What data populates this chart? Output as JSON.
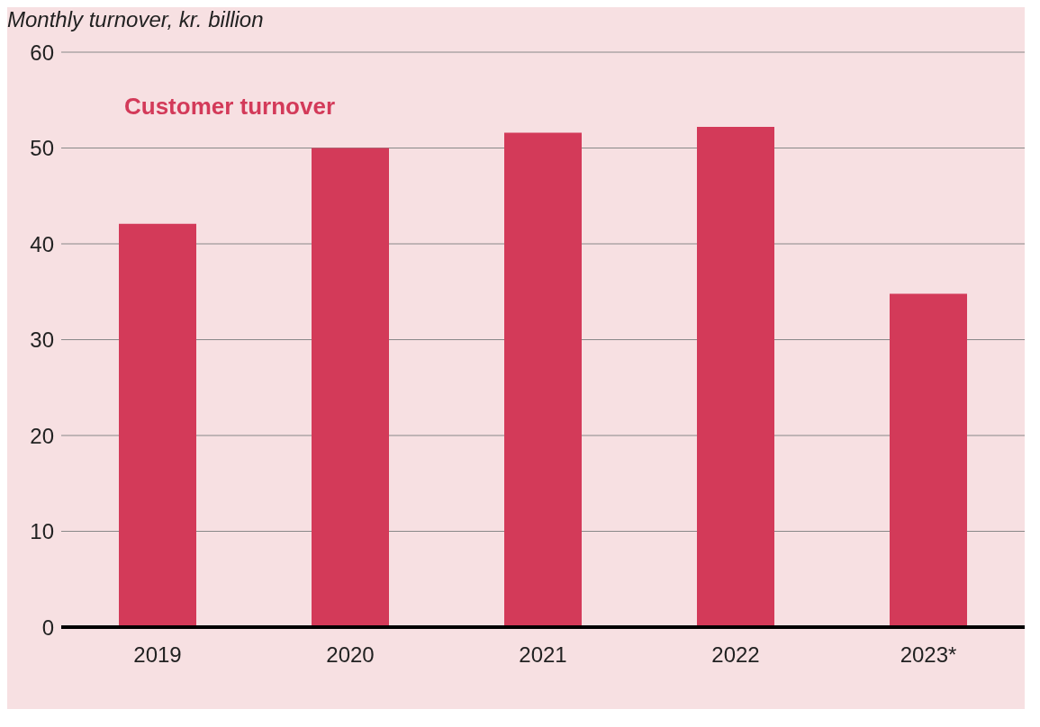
{
  "chart_data": {
    "type": "bar",
    "ylabel": "Monthly turnover, kr. billion",
    "categories": [
      "2019",
      "2020",
      "2021",
      "2022",
      "2023*"
    ],
    "series": [
      {
        "name": "Customer turnover",
        "color": "#d33a59",
        "values": [
          42.1,
          50.0,
          51.6,
          52.2,
          34.8
        ]
      }
    ],
    "ylim": [
      0,
      60
    ],
    "yticks": [
      0,
      10,
      20,
      30,
      40,
      50,
      60
    ],
    "grid": "y",
    "legend": "top left"
  }
}
